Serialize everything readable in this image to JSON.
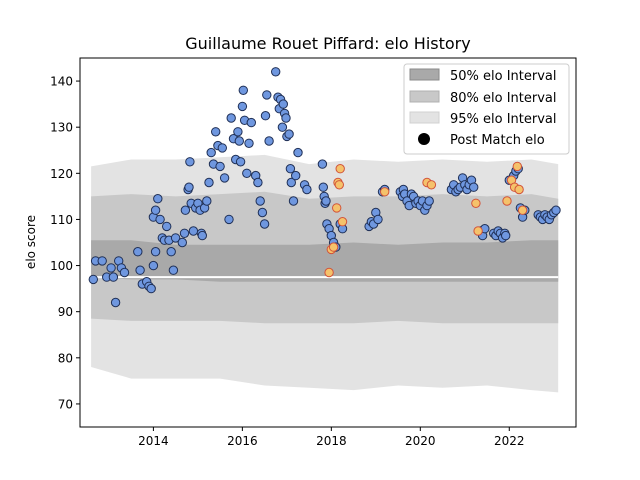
{
  "chart_data": {
    "type": "scatter",
    "title": "Guillaume Rouet Piffard: elo History",
    "xlabel": "",
    "ylabel": "elo score",
    "xlim": [
      2012.35,
      2023.5
    ],
    "ylim": [
      65,
      145
    ],
    "x_ticks": [
      2014,
      2016,
      2018,
      2020,
      2022
    ],
    "y_ticks": [
      70,
      80,
      90,
      100,
      110,
      120,
      130,
      140
    ],
    "legend_position": "top-right",
    "legend": {
      "interval_50": "50% elo Interval",
      "interval_80": "80% elo Interval",
      "interval_95": "95% elo Interval",
      "post_match": "Post Match elo"
    },
    "colors": {
      "band_50": "#a9a9a9",
      "band_80": "#c8c8c8",
      "band_95": "#e3e3e3",
      "median_line": "#ffffff",
      "point_blue_fill": "#6f97df",
      "point_blue_edge": "#1f2f55",
      "point_orange_fill": "#f5c26b",
      "point_orange_edge": "#d2533a"
    },
    "bands": {
      "x": [
        2012.6,
        2013.5,
        2014.5,
        2015.5,
        2016.5,
        2017.5,
        2018.5,
        2019.5,
        2020.5,
        2021.5,
        2022.5,
        2023.1
      ],
      "p95_hi": [
        121.5,
        123,
        123,
        123.5,
        124,
        122,
        123,
        122.5,
        123,
        122.5,
        123,
        122
      ],
      "p80_hi": [
        115,
        115.5,
        115,
        115.5,
        116,
        114.5,
        115,
        115,
        115.5,
        115,
        115.5,
        114.5
      ],
      "p50_hi": [
        105.5,
        105.5,
        104.5,
        104.5,
        104.5,
        104.5,
        105,
        104.5,
        105,
        105,
        105.5,
        105.5
      ],
      "median": [
        97.5,
        97.5,
        97.5,
        97.5,
        97.5,
        97.5,
        97.5,
        97.5,
        97.5,
        97.5,
        97.5,
        97.5
      ],
      "p50_lo": [
        97.5,
        97,
        97,
        96.5,
        96.5,
        96.5,
        96.5,
        96.5,
        96.5,
        96.5,
        96.5,
        96.5
      ],
      "p80_lo": [
        88.5,
        88,
        88,
        88,
        87.5,
        87.5,
        87.5,
        88,
        87.5,
        87.5,
        87.5,
        87.5
      ],
      "p95_lo": [
        78,
        75.5,
        75.5,
        75.5,
        74,
        73.5,
        73,
        74,
        73.5,
        74,
        73,
        72.5
      ]
    },
    "series": [
      {
        "name": "Post Match elo",
        "points": [
          [
            2012.65,
            97
          ],
          [
            2012.7,
            101
          ],
          [
            2012.85,
            101
          ],
          [
            2012.95,
            97.5
          ],
          [
            2013.05,
            99.5
          ],
          [
            2013.1,
            97.5
          ],
          [
            2013.15,
            92
          ],
          [
            2013.22,
            101
          ],
          [
            2013.28,
            99.5
          ],
          [
            2013.35,
            98.5
          ],
          [
            2013.65,
            103
          ],
          [
            2013.7,
            99
          ],
          [
            2013.75,
            96
          ],
          [
            2013.85,
            96.5
          ],
          [
            2013.9,
            95.5
          ],
          [
            2013.95,
            95
          ],
          [
            2014.0,
            100
          ],
          [
            2014.05,
            103
          ],
          [
            2014.0,
            110.5
          ],
          [
            2014.05,
            112
          ],
          [
            2014.1,
            114.5
          ],
          [
            2014.15,
            110
          ],
          [
            2014.2,
            106
          ],
          [
            2014.25,
            105.5
          ],
          [
            2014.3,
            108.5
          ],
          [
            2014.35,
            105.5
          ],
          [
            2014.4,
            103
          ],
          [
            2014.45,
            99
          ],
          [
            2014.5,
            106
          ],
          [
            2014.65,
            105
          ],
          [
            2014.7,
            107
          ],
          [
            2014.72,
            112
          ],
          [
            2014.78,
            116.5
          ],
          [
            2014.8,
            117
          ],
          [
            2014.82,
            122.5
          ],
          [
            2014.85,
            113.5
          ],
          [
            2014.9,
            107.5
          ],
          [
            2014.95,
            112.5
          ],
          [
            2015.0,
            113.5
          ],
          [
            2015.05,
            112
          ],
          [
            2015.08,
            107
          ],
          [
            2015.1,
            106.5
          ],
          [
            2015.15,
            112.5
          ],
          [
            2015.2,
            114
          ],
          [
            2015.25,
            118
          ],
          [
            2015.3,
            124.5
          ],
          [
            2015.35,
            122
          ],
          [
            2015.4,
            129
          ],
          [
            2015.45,
            126
          ],
          [
            2015.5,
            121.5
          ],
          [
            2015.55,
            125.5
          ],
          [
            2015.6,
            119
          ],
          [
            2015.7,
            110
          ],
          [
            2015.75,
            132
          ],
          [
            2015.8,
            127.5
          ],
          [
            2015.85,
            123
          ],
          [
            2015.9,
            129
          ],
          [
            2015.93,
            127
          ],
          [
            2015.96,
            122.5
          ],
          [
            2016.0,
            134.5
          ],
          [
            2016.02,
            138
          ],
          [
            2016.05,
            131.5
          ],
          [
            2016.1,
            120
          ],
          [
            2016.15,
            126.5
          ],
          [
            2016.2,
            131
          ],
          [
            2016.3,
            119.5
          ],
          [
            2016.35,
            118
          ],
          [
            2016.4,
            114
          ],
          [
            2016.45,
            111.5
          ],
          [
            2016.5,
            109
          ],
          [
            2016.52,
            132.5
          ],
          [
            2016.55,
            137
          ],
          [
            2016.6,
            127
          ],
          [
            2016.75,
            142
          ],
          [
            2016.8,
            136.5
          ],
          [
            2016.83,
            134
          ],
          [
            2016.86,
            136
          ],
          [
            2016.9,
            130
          ],
          [
            2016.92,
            135
          ],
          [
            2016.95,
            133
          ],
          [
            2016.98,
            132
          ],
          [
            2017.0,
            128
          ],
          [
            2017.05,
            128.5
          ],
          [
            2017.08,
            121
          ],
          [
            2017.1,
            118
          ],
          [
            2017.15,
            114
          ],
          [
            2017.2,
            119.5
          ],
          [
            2017.25,
            124.5
          ],
          [
            2017.4,
            117.5
          ],
          [
            2017.45,
            116.5
          ],
          [
            2017.8,
            122
          ],
          [
            2017.82,
            117
          ],
          [
            2017.84,
            115
          ],
          [
            2017.86,
            113.5
          ],
          [
            2017.88,
            114
          ],
          [
            2017.9,
            109
          ],
          [
            2017.95,
            108
          ],
          [
            2018.0,
            106.5
          ],
          [
            2018.05,
            105
          ],
          [
            2018.1,
            104
          ],
          [
            2018.2,
            109
          ],
          [
            2018.25,
            108
          ],
          [
            2018.85,
            108.5
          ],
          [
            2018.9,
            109.5
          ],
          [
            2018.95,
            109
          ],
          [
            2019.0,
            111.5
          ],
          [
            2019.05,
            110
          ],
          [
            2019.15,
            116
          ],
          [
            2019.2,
            116.5
          ],
          [
            2019.55,
            116
          ],
          [
            2019.6,
            115
          ],
          [
            2019.62,
            116.5
          ],
          [
            2019.65,
            115.5
          ],
          [
            2019.7,
            114
          ],
          [
            2019.75,
            113
          ],
          [
            2019.8,
            115.5
          ],
          [
            2019.85,
            115
          ],
          [
            2019.9,
            113.5
          ],
          [
            2019.95,
            114
          ],
          [
            2020.0,
            113
          ],
          [
            2020.05,
            114
          ],
          [
            2020.1,
            112
          ],
          [
            2020.15,
            113
          ],
          [
            2020.2,
            114
          ],
          [
            2020.7,
            116.5
          ],
          [
            2020.75,
            117.5
          ],
          [
            2020.8,
            116
          ],
          [
            2020.85,
            116.5
          ],
          [
            2020.9,
            117
          ],
          [
            2020.95,
            119
          ],
          [
            2021.0,
            117.5
          ],
          [
            2021.05,
            116.5
          ],
          [
            2021.1,
            117.5
          ],
          [
            2021.15,
            118.5
          ],
          [
            2021.2,
            117
          ],
          [
            2021.35,
            107.5
          ],
          [
            2021.4,
            106.5
          ],
          [
            2021.45,
            108
          ],
          [
            2021.65,
            107
          ],
          [
            2021.7,
            106.5
          ],
          [
            2021.75,
            107.5
          ],
          [
            2021.8,
            107
          ],
          [
            2021.85,
            106
          ],
          [
            2021.9,
            107
          ],
          [
            2021.92,
            106.5
          ],
          [
            2022.0,
            118.5
          ],
          [
            2022.1,
            119.5
          ],
          [
            2022.15,
            120.5
          ],
          [
            2022.2,
            121
          ],
          [
            2022.25,
            112.5
          ],
          [
            2022.3,
            110.5
          ],
          [
            2022.35,
            112
          ],
          [
            2022.65,
            111
          ],
          [
            2022.7,
            110.5
          ],
          [
            2022.75,
            110
          ],
          [
            2022.8,
            111
          ],
          [
            2022.85,
            110.5
          ],
          [
            2022.9,
            110
          ],
          [
            2022.95,
            111
          ],
          [
            2023.0,
            111.5
          ],
          [
            2023.05,
            112
          ]
        ]
      },
      {
        "name": "",
        "points": [
          [
            2017.95,
            98.5
          ],
          [
            2018.0,
            103.5
          ],
          [
            2018.05,
            104
          ],
          [
            2018.12,
            112.5
          ],
          [
            2018.15,
            118
          ],
          [
            2018.18,
            117.5
          ],
          [
            2018.2,
            121
          ],
          [
            2018.25,
            109.5
          ],
          [
            2019.2,
            116
          ],
          [
            2020.15,
            118
          ],
          [
            2020.25,
            117.5
          ],
          [
            2021.25,
            113.5
          ],
          [
            2021.3,
            107.5
          ],
          [
            2021.95,
            114
          ],
          [
            2022.05,
            118.5
          ],
          [
            2022.12,
            117
          ],
          [
            2022.18,
            121.5
          ],
          [
            2022.22,
            116.5
          ],
          [
            2022.3,
            112
          ]
        ]
      }
    ]
  }
}
